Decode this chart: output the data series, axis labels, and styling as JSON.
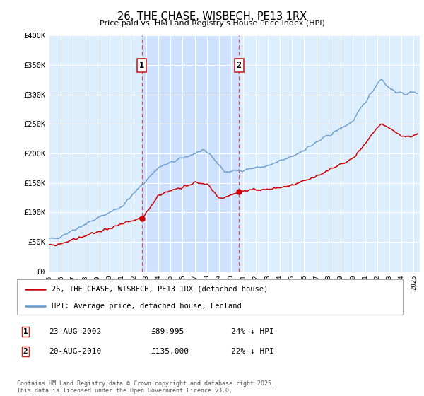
{
  "title": "26, THE CHASE, WISBECH, PE13 1RX",
  "subtitle": "Price paid vs. HM Land Registry's House Price Index (HPI)",
  "ylabel_ticks": [
    "£0",
    "£50K",
    "£100K",
    "£150K",
    "£200K",
    "£250K",
    "£300K",
    "£350K",
    "£400K"
  ],
  "ytick_values": [
    0,
    50000,
    100000,
    150000,
    200000,
    250000,
    300000,
    350000,
    400000
  ],
  "ylim": [
    0,
    400000
  ],
  "xlim_start": 1995.0,
  "xlim_end": 2025.5,
  "purchase1_x": 2002.65,
  "purchase1_y": 89995,
  "purchase2_x": 2010.65,
  "purchase2_y": 135000,
  "red_line_color": "#cc0000",
  "blue_line_color": "#6699cc",
  "background_color": "#ddeeff",
  "shade_color": "#cce0ff",
  "grid_color": "#ffffff",
  "legend_label_red": "26, THE CHASE, WISBECH, PE13 1RX (detached house)",
  "legend_label_blue": "HPI: Average price, detached house, Fenland",
  "table_row1": [
    "1",
    "23-AUG-2002",
    "£89,995",
    "24% ↓ HPI"
  ],
  "table_row2": [
    "2",
    "20-AUG-2010",
    "£135,000",
    "22% ↓ HPI"
  ],
  "footer": "Contains HM Land Registry data © Crown copyright and database right 2025.\nThis data is licensed under the Open Government Licence v3.0.",
  "xtick_years": [
    1995,
    1996,
    1997,
    1998,
    1999,
    2000,
    2001,
    2002,
    2003,
    2004,
    2005,
    2006,
    2007,
    2008,
    2009,
    2010,
    2011,
    2012,
    2013,
    2014,
    2015,
    2016,
    2017,
    2018,
    2019,
    2020,
    2021,
    2022,
    2023,
    2024,
    2025
  ]
}
